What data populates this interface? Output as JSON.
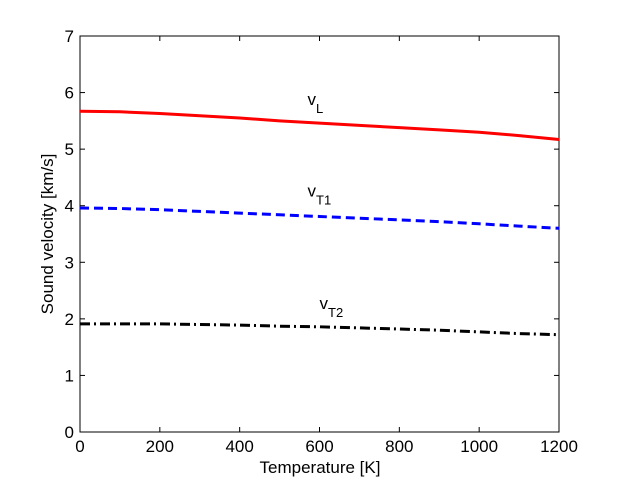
{
  "chart_data": {
    "type": "line",
    "title": "",
    "xlabel": "Temperature [K]",
    "ylabel": "Sound velocity [km/s]",
    "xlim": [
      0,
      1200
    ],
    "ylim": [
      0,
      7
    ],
    "xticks": [
      0,
      200,
      400,
      600,
      800,
      1000,
      1200
    ],
    "yticks": [
      0,
      1,
      2,
      3,
      4,
      5,
      6,
      7
    ],
    "grid": false,
    "series": [
      {
        "name": "v_L",
        "label_main": "v",
        "label_sub": "L",
        "color": "#ff0000",
        "style": "solid",
        "x": [
          0,
          100,
          200,
          300,
          400,
          500,
          600,
          700,
          800,
          900,
          1000,
          1100,
          1200
        ],
        "y": [
          5.67,
          5.66,
          5.63,
          5.59,
          5.55,
          5.5,
          5.46,
          5.42,
          5.38,
          5.34,
          5.3,
          5.24,
          5.17
        ],
        "label_at": [
          570,
          5.78
        ]
      },
      {
        "name": "v_T1",
        "label_main": "v",
        "label_sub": "T1",
        "color": "#0000ff",
        "style": "dashed",
        "x": [
          0,
          100,
          200,
          300,
          400,
          500,
          600,
          700,
          800,
          900,
          1000,
          1100,
          1200
        ],
        "y": [
          3.96,
          3.95,
          3.93,
          3.9,
          3.87,
          3.84,
          3.81,
          3.78,
          3.75,
          3.72,
          3.68,
          3.64,
          3.6
        ],
        "label_at": [
          570,
          4.16
        ]
      },
      {
        "name": "v_T2",
        "label_main": "v",
        "label_sub": "T2",
        "color": "#000000",
        "style": "dashdot",
        "x": [
          0,
          100,
          200,
          300,
          400,
          500,
          600,
          700,
          800,
          900,
          1000,
          1100,
          1200
        ],
        "y": [
          1.91,
          1.91,
          1.91,
          1.9,
          1.89,
          1.87,
          1.86,
          1.84,
          1.82,
          1.8,
          1.77,
          1.74,
          1.72
        ],
        "label_at": [
          600,
          2.17
        ]
      }
    ]
  }
}
